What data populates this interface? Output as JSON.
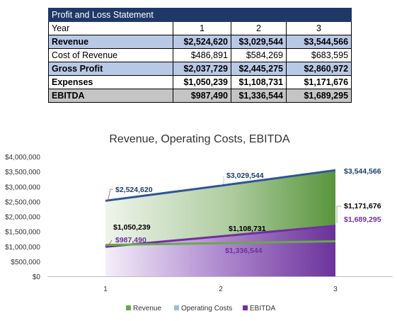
{
  "table": {
    "title": "Profit and Loss Statement",
    "header": [
      "Year",
      "1",
      "2",
      "3"
    ],
    "rows": [
      {
        "label": "Revenue",
        "values": [
          "$2,524,620",
          "$3,029,544",
          "$3,544,566"
        ],
        "style": "blue"
      },
      {
        "label": "Cost of Revenue",
        "values": [
          "$486,891",
          "$584,269",
          "$683,595"
        ],
        "style": "plain"
      },
      {
        "label": "Gross Profit",
        "values": [
          "$2,037,729",
          "$2,445,275",
          "$2,860,972"
        ],
        "style": "blue"
      },
      {
        "label": "Expenses",
        "values": [
          "$1,050,239",
          "$1,108,731",
          "$1,171,676"
        ],
        "style": "bold"
      },
      {
        "label": "EBITDA",
        "values": [
          "$987,490",
          "$1,336,544",
          "$1,689,295"
        ],
        "style": "grey"
      }
    ]
  },
  "chart_data": {
    "type": "area",
    "title": "Revenue, Operating Costs, EBITDA",
    "categories": [
      "1",
      "2",
      "3"
    ],
    "ylim": [
      0,
      4000000
    ],
    "yticks": [
      0,
      500000,
      1000000,
      1500000,
      2000000,
      2500000,
      3000000,
      3500000,
      4000000
    ],
    "ytick_labels": [
      "$0",
      "$500,000",
      "$1,000,000",
      "$1,500,000",
      "$2,000,000",
      "$2,500,000",
      "$3,000,000",
      "$3,500,000",
      "$4,000,000"
    ],
    "legend_position": "bottom",
    "series": [
      {
        "name": "Revenue",
        "values": [
          2524620,
          3029544,
          3544566
        ],
        "labels": [
          "$2,524,620",
          "$3,029,544",
          "$3,544,566"
        ],
        "color": "#3a5f9e",
        "fill": "#4b8a2e"
      },
      {
        "name": "Operating Costs",
        "values": [
          1050239,
          1108731,
          1171676
        ],
        "labels": [
          "$1,050,239",
          "$1,108,731",
          "$1,171,676"
        ],
        "color": "#6aa84f",
        "fill": "#9bbcdc"
      },
      {
        "name": "EBITDA",
        "values": [
          987490,
          1336544,
          1689295
        ],
        "labels": [
          "$987,490",
          "$1,336,544",
          "$1,689,295"
        ],
        "color": "#7030a0",
        "fill": "#7030a0"
      }
    ],
    "label_colors": {
      "Revenue": "#1f3f66",
      "Operating Costs": "#000000",
      "EBITDA": "#7030a0"
    }
  }
}
